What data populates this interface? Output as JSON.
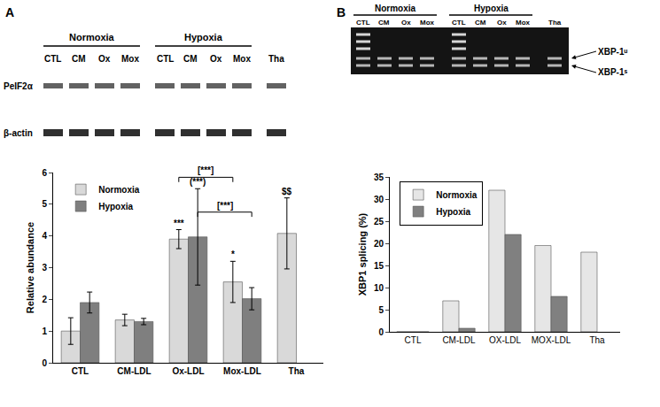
{
  "chart_data": [
    {
      "type": "bar",
      "ylabel": "Relative abundance",
      "categories": [
        "CTL",
        "CM-LDL",
        "Ox-LDL",
        "Mox-LDL",
        "Tha"
      ],
      "series": [
        {
          "name": "Normoxia",
          "color": "#d9d9d9",
          "values": [
            1.0,
            1.35,
            3.9,
            2.55,
            4.08
          ],
          "errors": [
            0.42,
            0.18,
            0.3,
            0.65,
            1.12
          ]
        },
        {
          "name": "Hypoxia",
          "color": "#7f7f7f",
          "values": [
            1.9,
            1.3,
            3.97,
            2.02,
            null
          ],
          "errors": [
            0.33,
            0.1,
            1.52,
            0.35,
            null
          ]
        }
      ],
      "ylim": [
        0,
        6
      ],
      "yticks": [
        0,
        1,
        2,
        3,
        4,
        5,
        6
      ],
      "grid": false,
      "legend": "upper left",
      "annotations": [
        {
          "category": "Ox-LDL",
          "series": "Normoxia",
          "text": "***"
        },
        {
          "category": "Ox-LDL",
          "series": "Hypoxia",
          "text": "(***)"
        },
        {
          "category": "Mox-LDL",
          "series": "Normoxia",
          "text": "*"
        },
        {
          "category": "Tha",
          "series": "Normoxia",
          "text": "$$"
        }
      ],
      "comparisons": [
        {
          "from": "Ox-LDL",
          "to": "Mox-LDL",
          "series": "Normoxia",
          "text": "[***]"
        },
        {
          "from": "Ox-LDL",
          "to": "Mox-LDL",
          "series": "Hypoxia",
          "text": "[***]"
        }
      ]
    },
    {
      "type": "bar",
      "ylabel": "XBP1 splicing (%)",
      "categories": [
        "CTL",
        "CM-LDL",
        "OX-LDL",
        "MOX-LDL",
        "Tha"
      ],
      "series": [
        {
          "name": "Normoxia",
          "color": "#e6e6e6",
          "values": [
            0,
            7,
            32,
            19.5,
            18
          ]
        },
        {
          "name": "Hypoxia",
          "color": "#808080",
          "values": [
            0,
            0.8,
            22,
            8,
            null
          ]
        }
      ],
      "ylim": [
        0,
        35
      ],
      "yticks": [
        0,
        5,
        10,
        15,
        20,
        25,
        30,
        35
      ],
      "grid": false,
      "legend": "upper left"
    }
  ],
  "blots": [
    {
      "panel": "A",
      "groups": [
        "Normoxia",
        "Hypoxia"
      ],
      "lanes": [
        "CTL",
        "CM",
        "Ox",
        "Mox",
        "CTL",
        "CM",
        "Ox",
        "Mox",
        "Tha"
      ],
      "rows": [
        "PeIF2α",
        "β-actin"
      ]
    },
    {
      "panel": "B",
      "groups": [
        "Normoxia",
        "Hypoxia"
      ],
      "lanes": [
        "CTL",
        "CM",
        "Ox",
        "Mox",
        "CTL",
        "CM",
        "Ox",
        "Mox",
        "Tha"
      ],
      "bands": [
        "XBP-1ᵘ",
        "XBP-1ˢ"
      ]
    }
  ]
}
